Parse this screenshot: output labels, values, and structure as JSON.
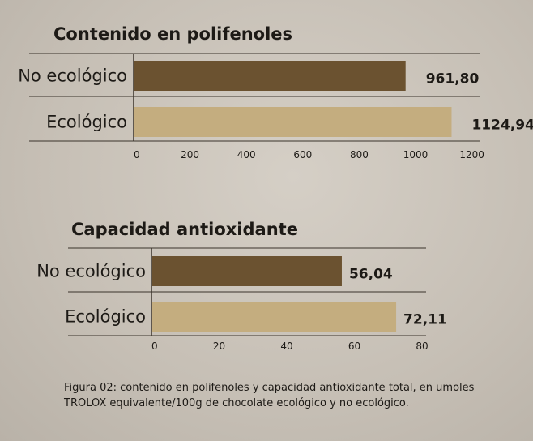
{
  "colors": {
    "no_ecologico": "#6b5230",
    "ecologico": "#c4ad7f",
    "rule": "#3a332b"
  },
  "chart_data": [
    {
      "type": "bar",
      "orientation": "horizontal",
      "title": "Contenido en polifenoles",
      "categories": [
        "No ecológico",
        "Ecológico"
      ],
      "values": [
        961.8,
        1124.94
      ],
      "value_labels": [
        "961,80",
        "1124,94"
      ],
      "xlim": [
        0,
        1200
      ],
      "ticks": [
        0,
        200,
        400,
        600,
        800,
        1000,
        1200
      ],
      "tick_labels": [
        "0",
        "200",
        "400",
        "600",
        "800",
        "1000",
        "1200"
      ],
      "grid": false
    },
    {
      "type": "bar",
      "orientation": "horizontal",
      "title": "Capacidad antioxidante",
      "categories": [
        "No ecológico",
        "Ecológico"
      ],
      "values": [
        56.04,
        72.11
      ],
      "value_labels": [
        "56,04",
        "72,11"
      ],
      "xlim": [
        0,
        80
      ],
      "ticks": [
        0,
        20,
        40,
        60,
        80
      ],
      "tick_labels": [
        "0",
        "20",
        "40",
        "60",
        "80"
      ],
      "grid": false
    }
  ],
  "caption": "Figura 02: contenido en polifenoles y capacidad antioxidante total, en umoles TROLOX equivalente/100g de chocolate ecológico y no ecológico."
}
